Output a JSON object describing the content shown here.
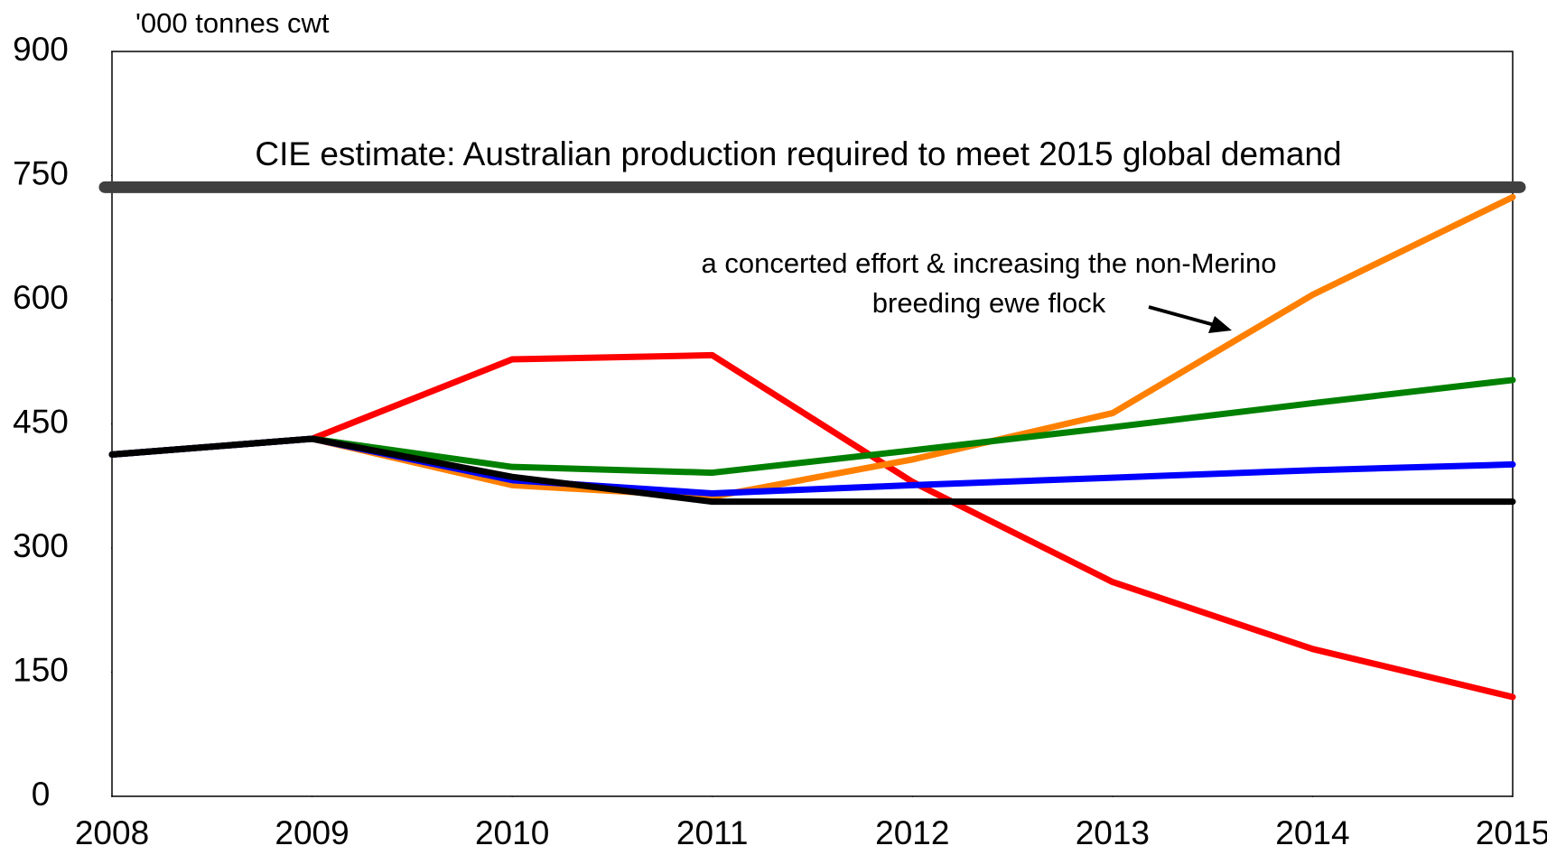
{
  "chart_data": {
    "type": "line",
    "y_axis_label": "'000 tonnes cwt",
    "x": [
      2008,
      2009,
      2010,
      2011,
      2012,
      2013,
      2014,
      2015
    ],
    "xlim": [
      2008,
      2015
    ],
    "xticks": [
      2008,
      2009,
      2010,
      2011,
      2012,
      2013,
      2014,
      2015
    ],
    "ylim": [
      0,
      900
    ],
    "yticks": [
      0,
      150,
      300,
      450,
      600,
      750,
      900
    ],
    "grid": false,
    "reference": {
      "value": 736,
      "label": "CIE estimate: Australian production required to meet 2015 global demand",
      "color": "#404040"
    },
    "annotation": [
      "a concerted effort & increasing the non-Merino",
      "breeding ewe flock"
    ],
    "series": [
      {
        "color": "#ff0000",
        "values": [
          413,
          432,
          528,
          533,
          380,
          259,
          178,
          120
        ]
      },
      {
        "color": "#ff8000",
        "values": [
          413,
          432,
          376,
          362,
          407,
          463,
          606,
          724
        ]
      },
      {
        "color": "#008000",
        "values": [
          413,
          432,
          398,
          391,
          418,
          446,
          475,
          503
        ]
      },
      {
        "color": "#0000ff",
        "values": [
          413,
          432,
          382,
          366,
          376,
          385,
          394,
          401
        ]
      },
      {
        "color": "#000000",
        "values": [
          413,
          432,
          386,
          356,
          356,
          356,
          356,
          356
        ]
      }
    ]
  }
}
